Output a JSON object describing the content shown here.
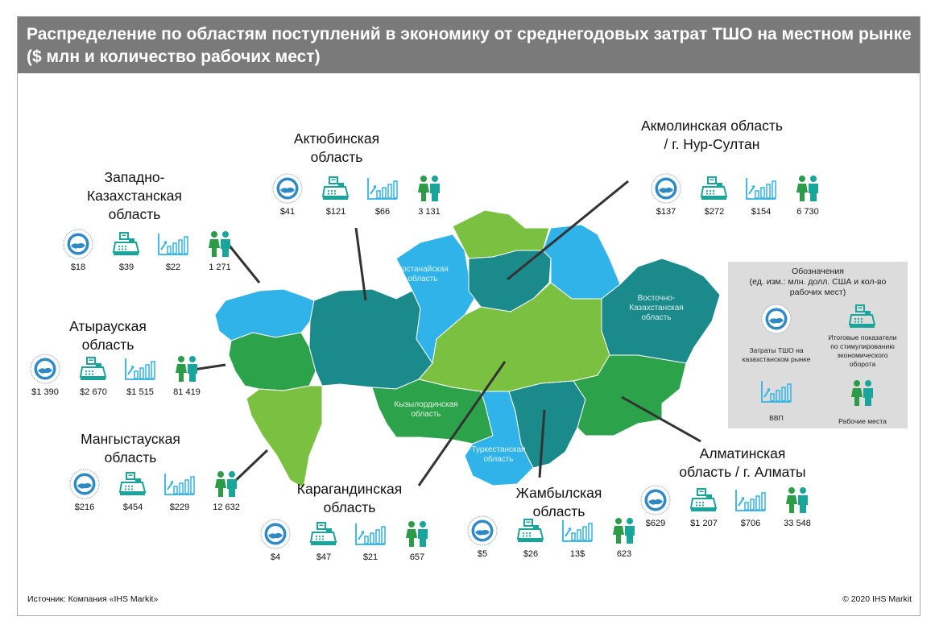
{
  "title": "Распределение по областям поступлений в экономику от среднегодовых затрат ТШО на местном рынке ($ млн и количество рабочих мест)",
  "source": "Источник: Компания «IHS Markit»",
  "copyright": "© 2020 IHS Markit",
  "icon_names": [
    "tco-logo-icon",
    "cash-register-icon",
    "growth-chart-icon",
    "workers-icon"
  ],
  "colors": {
    "header": "#7a7a7a",
    "light_blue": "#2fb3e8",
    "teal": "#1a8a8a",
    "light_green": "#7ac142",
    "green": "#2ca24a",
    "icon_teal": "#1aa59a",
    "icon_green": "#2d9c48"
  },
  "regions": [
    {
      "key": "zko",
      "name": [
        "Западно-",
        "Казахстанская",
        "область"
      ],
      "values": [
        "$18",
        "$39",
        "$22",
        "1 271"
      ]
    },
    {
      "key": "akt",
      "name": [
        "Актюбинская",
        "область"
      ],
      "values": [
        "$41",
        "$121",
        "$66",
        "3 131"
      ]
    },
    {
      "key": "akm",
      "name": [
        "Акмолинская область",
        "/ г. Нур-Султан"
      ],
      "values": [
        "$137",
        "$272",
        "$154",
        "6 730"
      ]
    },
    {
      "key": "aty",
      "name": [
        "Атырауская",
        "область"
      ],
      "values": [
        "$1 390",
        "$2 670",
        "$1 515",
        "81 419"
      ]
    },
    {
      "key": "man",
      "name": [
        "Мангыстауская",
        "область"
      ],
      "values": [
        "$216",
        "$454",
        "$229",
        "12 632"
      ]
    },
    {
      "key": "kar",
      "name": [
        "Карагандинская",
        "область"
      ],
      "values": [
        "$4",
        "$47",
        "$21",
        "657"
      ]
    },
    {
      "key": "zha",
      "name": [
        "Жамбылская",
        "область"
      ],
      "values": [
        "$5",
        "$26",
        "13$",
        "623"
      ]
    },
    {
      "key": "alm",
      "name": [
        "Алматинская",
        "область / г. Алматы"
      ],
      "values": [
        "$629",
        "$1 207",
        "$706",
        "33 548"
      ]
    }
  ],
  "map_labels": [
    {
      "key": "kos",
      "text": [
        "Костанайская",
        "область"
      ]
    },
    {
      "key": "vko",
      "text": [
        "Восточно-",
        "Казахстанская",
        "область"
      ]
    },
    {
      "key": "kyz",
      "text": [
        "Кызылординская",
        "область"
      ]
    },
    {
      "key": "tur",
      "text": [
        "Туркестанская",
        "область"
      ]
    }
  ],
  "legend": {
    "title": [
      "Обозначения",
      "(ед. изм.: млн. долл. США и кол-во",
      "рабочих мест)"
    ],
    "items": [
      {
        "icon": "tco-logo-icon",
        "label": [
          "Затраты ТШО на",
          "казахстанском рынке"
        ]
      },
      {
        "icon": "cash-register-icon",
        "label": [
          "Итоговые показатели",
          "по стимулированию",
          "экономического",
          "оборота"
        ]
      },
      {
        "icon": "growth-chart-icon",
        "label": [
          "ВВП"
        ]
      },
      {
        "icon": "workers-icon",
        "label": [
          "Рабочие места"
        ]
      }
    ]
  }
}
